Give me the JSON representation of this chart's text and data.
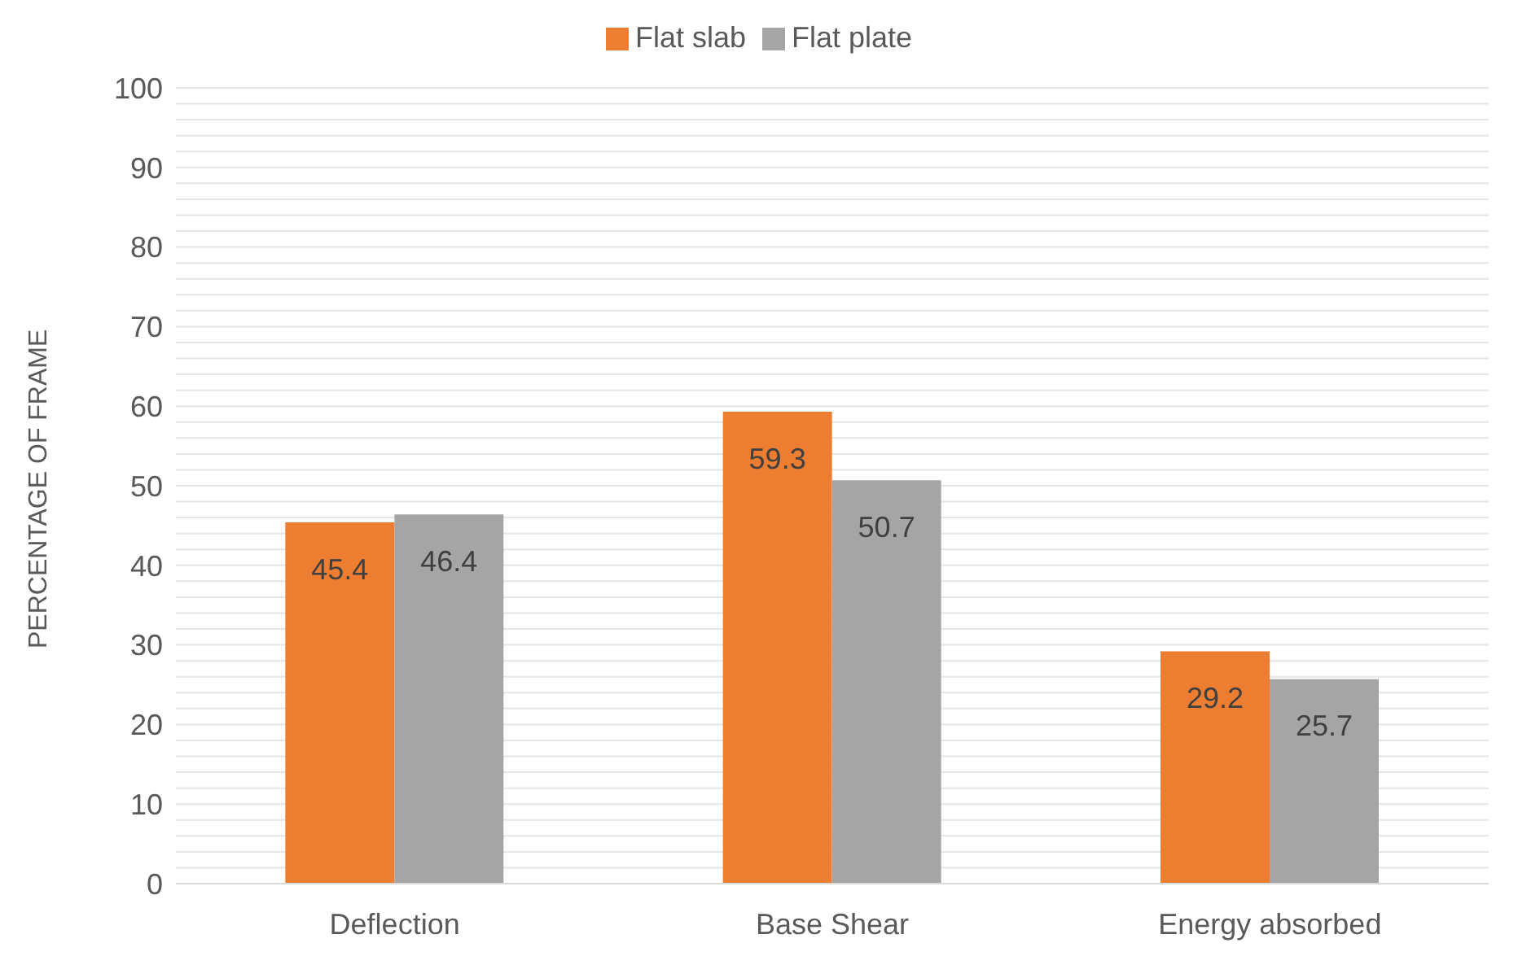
{
  "chart_data": {
    "type": "bar",
    "ylabel": "PERCENTAGE OF FRAME",
    "categories": [
      "Deflection",
      "Base Shear",
      "Energy absorbed"
    ],
    "series": [
      {
        "name": "Flat slab",
        "color": "#ed7d31",
        "values": [
          45.4,
          59.3,
          29.2
        ]
      },
      {
        "name": "Flat plate",
        "color": "#a5a5a5",
        "values": [
          46.4,
          50.7,
          25.7
        ]
      }
    ],
    "ylim": [
      0,
      100
    ],
    "yticks": [
      0,
      {
        "value": 2,
        "label": null
      },
      {
        "value": 4,
        "label": null
      },
      {
        "value": 6,
        "label": null
      },
      {
        "value": 8,
        "label": null
      },
      10,
      {
        "value": 12,
        "label": null
      },
      {
        "value": 14,
        "label": null
      },
      {
        "value": 16,
        "label": null
      },
      {
        "value": 18,
        "label": null
      },
      20,
      {
        "value": 22,
        "label": null
      },
      {
        "value": 24,
        "label": null
      },
      {
        "value": 26,
        "label": null
      },
      {
        "value": 28,
        "label": null
      },
      30,
      {
        "value": 32,
        "label": null
      },
      {
        "value": 34,
        "label": null
      },
      {
        "value": 36,
        "label": null
      },
      {
        "value": 38,
        "label": null
      },
      40,
      {
        "value": 42,
        "label": null
      },
      {
        "value": 44,
        "label": null
      },
      {
        "value": 46,
        "label": null
      },
      {
        "value": 48,
        "label": null
      },
      50,
      {
        "value": 52,
        "label": null
      },
      {
        "value": 54,
        "label": null
      },
      {
        "value": 56,
        "label": null
      },
      {
        "value": 58,
        "label": null
      },
      60,
      {
        "value": 62,
        "label": null
      },
      {
        "value": 64,
        "label": null
      },
      {
        "value": 66,
        "label": null
      },
      {
        "value": 68,
        "label": null
      },
      70,
      {
        "value": 72,
        "label": null
      },
      {
        "value": 74,
        "label": null
      },
      {
        "value": 76,
        "label": null
      },
      {
        "value": 78,
        "label": null
      },
      80,
      {
        "value": 82,
        "label": null
      },
      {
        "value": 84,
        "label": null
      },
      {
        "value": 86,
        "label": null
      },
      {
        "value": 88,
        "label": null
      },
      90,
      {
        "value": 92,
        "label": null
      },
      {
        "value": 94,
        "label": null
      },
      {
        "value": 96,
        "label": null
      },
      {
        "value": 98,
        "label": null
      },
      100
    ],
    "grid": "y",
    "legend": "top",
    "data_labels": true
  }
}
